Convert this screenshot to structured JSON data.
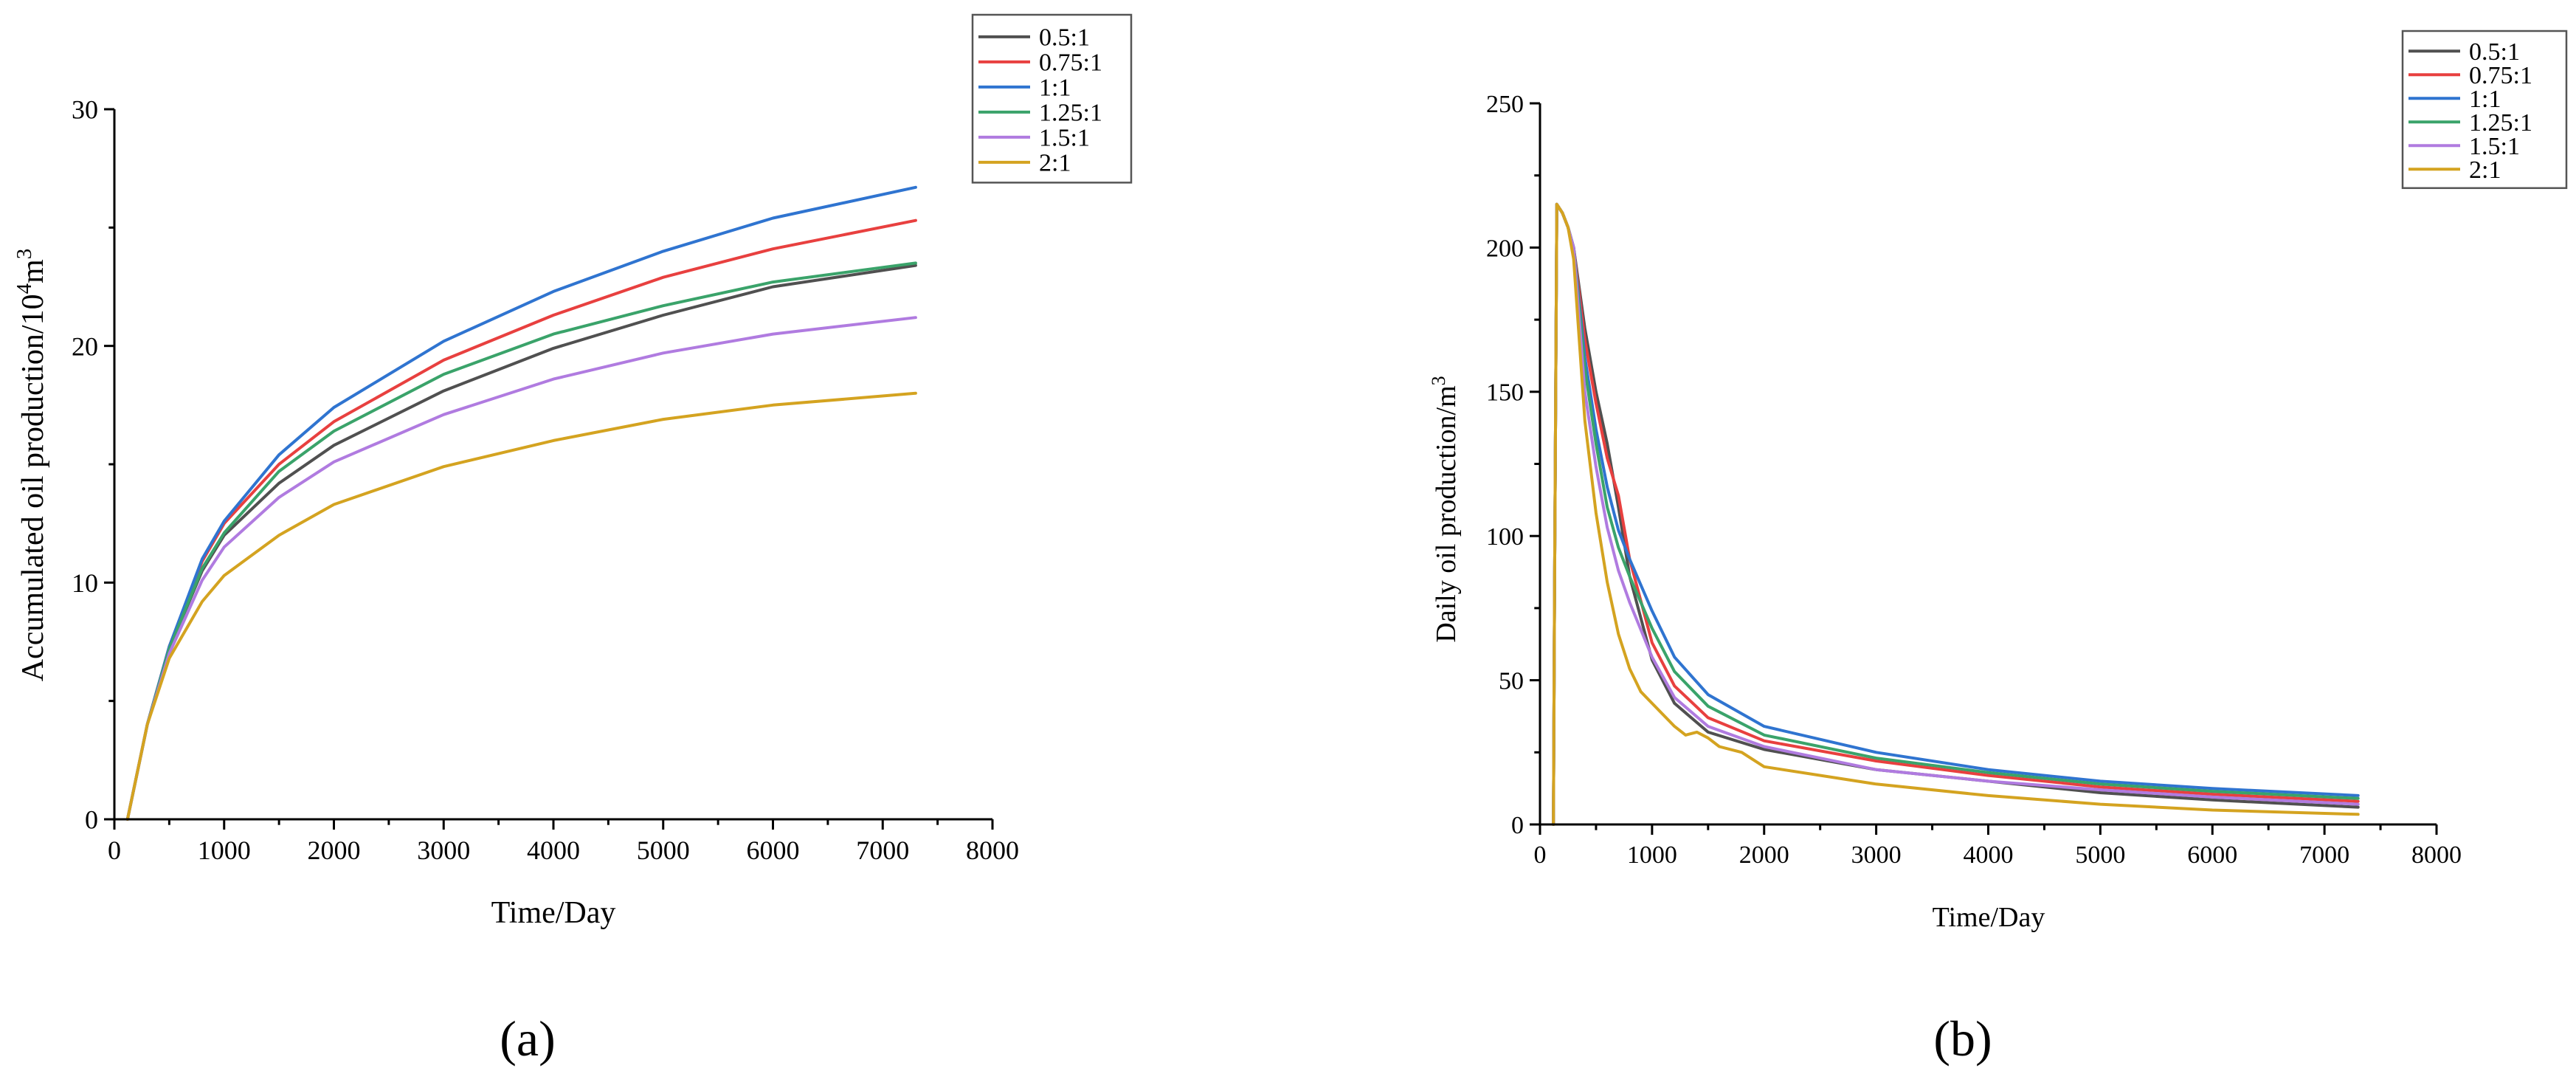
{
  "chart_data": [
    {
      "id": "a",
      "type": "line",
      "title": "",
      "panel_label": "(a)",
      "xlabel": "Time/Day",
      "ylabel": "Accumulated oil production/10⁴m³",
      "xlim": [
        0,
        8000
      ],
      "ylim": [
        0,
        30
      ],
      "x_ticks": [
        0,
        1000,
        2000,
        3000,
        4000,
        5000,
        6000,
        7000,
        8000
      ],
      "y_ticks": [
        0,
        10,
        20,
        30
      ],
      "x_tick_labels": [
        "0",
        "1000",
        "2000",
        "3000",
        "4000",
        "5000",
        "6000",
        "7000",
        "8000"
      ],
      "y_tick_labels": [
        "0",
        "10",
        "20",
        "30"
      ],
      "legend_position": "top-right",
      "grid": false,
      "series": [
        {
          "name": "0.5:1",
          "color": "#505050",
          "x": [
            120,
            300,
            500,
            800,
            1000,
            1500,
            2000,
            3000,
            4000,
            5000,
            6000,
            7300
          ],
          "y": [
            0,
            4,
            7.2,
            10.5,
            12.0,
            14.2,
            15.8,
            18.1,
            19.9,
            21.3,
            22.5,
            23.4
          ]
        },
        {
          "name": "0.75:1",
          "color": "#e8403f",
          "x": [
            120,
            300,
            500,
            800,
            1000,
            1500,
            2000,
            3000,
            4000,
            5000,
            6000,
            7300
          ],
          "y": [
            0,
            4,
            7.3,
            10.9,
            12.5,
            15.0,
            16.8,
            19.4,
            21.3,
            22.9,
            24.1,
            25.3
          ]
        },
        {
          "name": "1:1",
          "color": "#2f74d0",
          "x": [
            120,
            300,
            500,
            800,
            1000,
            1500,
            2000,
            3000,
            4000,
            5000,
            6000,
            7300
          ],
          "y": [
            0,
            4,
            7.3,
            11.0,
            12.6,
            15.4,
            17.4,
            20.2,
            22.3,
            24.0,
            25.4,
            26.7
          ]
        },
        {
          "name": "1.25:1",
          "color": "#3aa36a",
          "x": [
            120,
            300,
            500,
            800,
            1000,
            1500,
            2000,
            3000,
            4000,
            5000,
            6000,
            7300
          ],
          "y": [
            0,
            4,
            7.2,
            10.6,
            12.1,
            14.7,
            16.4,
            18.8,
            20.5,
            21.7,
            22.7,
            23.5
          ]
        },
        {
          "name": "1.5:1",
          "color": "#b07be0",
          "x": [
            120,
            300,
            500,
            800,
            1000,
            1500,
            2000,
            3000,
            4000,
            5000,
            6000,
            7300
          ],
          "y": [
            0,
            4,
            7.0,
            10.1,
            11.5,
            13.6,
            15.1,
            17.1,
            18.6,
            19.7,
            20.5,
            21.2
          ]
        },
        {
          "name": "2:1",
          "color": "#d4a320",
          "x": [
            120,
            300,
            500,
            800,
            1000,
            1500,
            2000,
            3000,
            4000,
            5000,
            6000,
            7300
          ],
          "y": [
            0,
            4,
            6.8,
            9.2,
            10.3,
            12.0,
            13.3,
            14.9,
            16.0,
            16.9,
            17.5,
            18.0
          ]
        }
      ]
    },
    {
      "id": "b",
      "type": "line",
      "title": "",
      "panel_label": "(b)",
      "xlabel": "Time/Day",
      "ylabel": "Daily oil production/m³",
      "xlim": [
        0,
        8000
      ],
      "ylim": [
        0,
        250
      ],
      "x_ticks": [
        0,
        1000,
        2000,
        3000,
        4000,
        5000,
        6000,
        7000,
        8000
      ],
      "y_ticks": [
        0,
        50,
        100,
        150,
        200,
        250
      ],
      "x_tick_labels": [
        "0",
        "1000",
        "2000",
        "3000",
        "4000",
        "5000",
        "6000",
        "7000",
        "8000"
      ],
      "y_tick_labels": [
        "0",
        "50",
        "100",
        "150",
        "200",
        "250"
      ],
      "legend_position": "top-right",
      "grid": false,
      "series": [
        {
          "name": "0.5:1",
          "color": "#505050",
          "x": [
            120,
            130,
            150,
            200,
            250,
            300,
            400,
            500,
            600,
            700,
            800,
            1000,
            1200,
            1500,
            2000,
            3000,
            4000,
            5000,
            6000,
            7300
          ],
          "y": [
            0,
            80,
            215,
            212,
            207,
            200,
            172,
            150,
            132,
            110,
            86,
            57,
            42,
            32,
            26,
            19,
            15,
            11,
            8.5,
            6
          ]
        },
        {
          "name": "0.75:1",
          "color": "#e8403f",
          "x": [
            120,
            130,
            150,
            200,
            250,
            300,
            400,
            500,
            600,
            700,
            800,
            1000,
            1200,
            1500,
            2000,
            3000,
            4000,
            5000,
            6000,
            7300
          ],
          "y": [
            0,
            80,
            215,
            212,
            207,
            200,
            168,
            146,
            127,
            114,
            92,
            63,
            48,
            37,
            29,
            22,
            17,
            13,
            10.5,
            8
          ]
        },
        {
          "name": "1:1",
          "color": "#2f74d0",
          "x": [
            120,
            130,
            150,
            200,
            250,
            300,
            400,
            500,
            600,
            700,
            800,
            1000,
            1200,
            1500,
            2000,
            3000,
            4000,
            5000,
            6000,
            7300
          ],
          "y": [
            0,
            80,
            215,
            212,
            207,
            200,
            162,
            137,
            117,
            102,
            92,
            74,
            58,
            45,
            34,
            25,
            19,
            15,
            12.5,
            10
          ]
        },
        {
          "name": "1.25:1",
          "color": "#3aa36a",
          "x": [
            120,
            130,
            150,
            200,
            250,
            300,
            400,
            500,
            600,
            700,
            800,
            1000,
            1200,
            1500,
            2000,
            3000,
            4000,
            5000,
            6000,
            7300
          ],
          "y": [
            0,
            80,
            215,
            212,
            207,
            200,
            158,
            132,
            110,
            96,
            86,
            68,
            53,
            41,
            31,
            23,
            18,
            14,
            11.5,
            9
          ]
        },
        {
          "name": "1.5:1",
          "color": "#b07be0",
          "x": [
            120,
            130,
            150,
            200,
            250,
            300,
            400,
            500,
            600,
            700,
            800,
            1000,
            1200,
            1500,
            2000,
            3000,
            4000,
            5000,
            6000,
            7300
          ],
          "y": [
            0,
            80,
            215,
            212,
            207,
            200,
            150,
            124,
            103,
            88,
            77,
            58,
            44,
            34,
            27,
            19,
            15,
            12,
            9.5,
            7
          ]
        },
        {
          "name": "2:1",
          "color": "#d4a320",
          "x": [
            120,
            130,
            150,
            200,
            250,
            300,
            400,
            500,
            600,
            700,
            800,
            900,
            1000,
            1100,
            1200,
            1300,
            1400,
            1500,
            1600,
            1800,
            2000,
            3000,
            4000,
            5000,
            6000,
            7300
          ],
          "y": [
            0,
            80,
            215,
            212,
            207,
            196,
            140,
            108,
            84,
            66,
            54,
            46,
            42,
            38,
            34,
            31,
            32,
            30,
            27,
            25,
            20,
            14,
            10,
            7,
            5,
            3.5
          ]
        }
      ]
    }
  ]
}
